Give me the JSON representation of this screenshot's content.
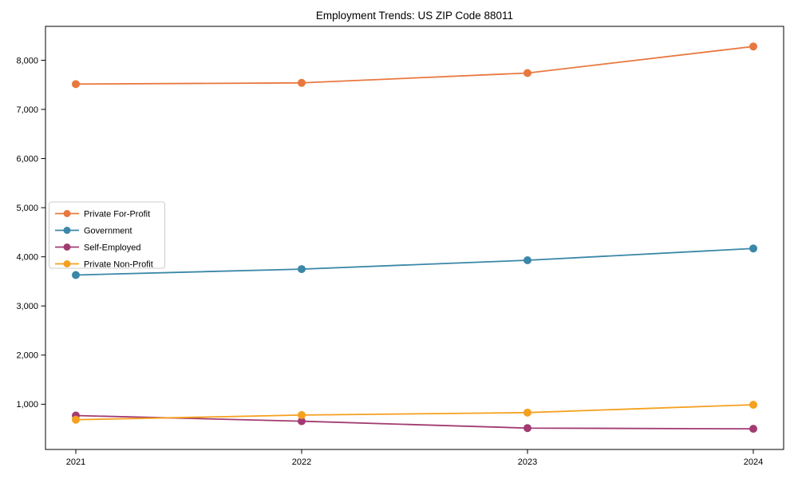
{
  "figure": {
    "background": "#ffffff",
    "border_color": "#000000",
    "tick_color": "#000000",
    "legend_border_color": "#cccccc",
    "legend_background": "#ffffff"
  },
  "chart_data": {
    "type": "line",
    "title": "Employment Trends: US ZIP Code 88011",
    "xlabel": "",
    "ylabel": "",
    "categories": [
      "2021",
      "2022",
      "2023",
      "2024"
    ],
    "series": [
      {
        "name": "Private For-Profit",
        "color": "#e8783f",
        "values": [
          7515,
          7540,
          7740,
          8280
        ]
      },
      {
        "name": "Government",
        "color": "#3a87a8",
        "values": [
          3630,
          3750,
          3930,
          4170
        ]
      },
      {
        "name": "Self-Employed",
        "color": "#a23b72",
        "values": [
          770,
          655,
          515,
          500
        ]
      },
      {
        "name": "Private Non-Profit",
        "color": "#f5a01e",
        "values": [
          685,
          780,
          830,
          990
        ]
      }
    ],
    "y_ticks": [
      {
        "value": 1000,
        "label": "1,000"
      },
      {
        "value": 2000,
        "label": "2,000"
      },
      {
        "value": 3000,
        "label": "3,000"
      },
      {
        "value": 4000,
        "label": "4,000"
      },
      {
        "value": 5000,
        "label": "5,000"
      },
      {
        "value": 6000,
        "label": "6,000"
      },
      {
        "value": 7000,
        "label": "7,000"
      },
      {
        "value": 8000,
        "label": "8,000"
      }
    ],
    "ylim": [
      80,
      8690
    ],
    "grid": false,
    "legend_position": "center-left",
    "marker": "circle",
    "marker_size": 5,
    "line_width": 1.8
  }
}
